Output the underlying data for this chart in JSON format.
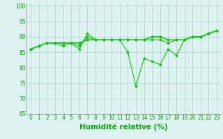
{
  "x": [
    0,
    1,
    2,
    3,
    4,
    5,
    6,
    7,
    8,
    9,
    10,
    11,
    12,
    13,
    14,
    15,
    16,
    17,
    18,
    19,
    20,
    21,
    22,
    23
  ],
  "lines": [
    [
      86,
      87,
      88,
      88,
      87,
      88,
      86,
      91,
      89,
      89,
      89,
      89,
      85,
      74,
      83,
      82,
      81,
      86,
      84,
      89,
      90,
      90,
      91,
      92
    ],
    [
      86,
      87,
      88,
      88,
      88,
      88,
      87,
      90,
      89,
      89,
      89,
      89,
      89,
      89,
      89,
      89,
      89,
      88,
      89,
      89,
      90,
      90,
      91,
      92
    ],
    [
      86,
      87,
      88,
      88,
      88,
      88,
      88,
      89,
      89,
      89,
      89,
      89,
      89,
      89,
      89,
      90,
      90,
      89,
      89,
      89,
      90,
      90,
      91,
      92
    ],
    [
      86,
      87,
      88,
      88,
      88,
      88,
      88,
      89,
      89,
      89,
      89,
      89,
      89,
      89,
      89,
      90,
      90,
      89,
      89,
      89,
      90,
      90,
      91,
      92
    ]
  ],
  "line_color": "#00cc00",
  "marker": "D",
  "markersize": 1.8,
  "linewidth": 0.8,
  "bg_color": "#dff2f2",
  "grid_color": "#b0d8cc",
  "xlabel": "Humidité relative (%)",
  "xlim": [
    -0.5,
    23.5
  ],
  "ylim": [
    65,
    101
  ],
  "yticks": [
    65,
    70,
    75,
    80,
    85,
    90,
    95,
    100
  ],
  "xticks": [
    0,
    1,
    2,
    3,
    4,
    5,
    6,
    7,
    8,
    9,
    10,
    11,
    12,
    13,
    14,
    15,
    16,
    17,
    18,
    19,
    20,
    21,
    22,
    23
  ],
  "tick_fontsize": 5.5,
  "xlabel_fontsize": 7.5,
  "tick_color": "#00aa00",
  "xlabel_color": "#00aa00",
  "spine_color": "#888888"
}
